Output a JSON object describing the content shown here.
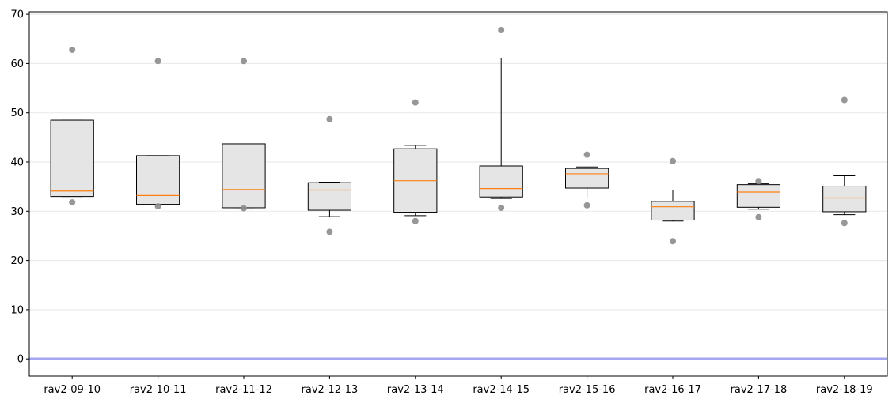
{
  "chart_data": {
    "type": "box",
    "title": "",
    "xlabel": "",
    "ylabel": "",
    "ylim": [
      -3.5,
      70.5
    ],
    "yticks": [
      0,
      10,
      20,
      30,
      40,
      50,
      60,
      70
    ],
    "grid": "horizontal",
    "reference_line": 0,
    "colors": {
      "box_fill": "#e5e5e5",
      "box_edge": "#000000",
      "median": "#ff7f0e",
      "flier": "#8c8c8c",
      "grid": "#ebebeb",
      "reference_line": "#a6a6f0"
    },
    "categories": [
      "rav2-09-10",
      "rav2-10-11",
      "rav2-11-12",
      "rav2-12-13",
      "rav2-13-14",
      "rav2-14-15",
      "rav2-15-16",
      "rav2-16-17",
      "rav2-17-18",
      "rav2-18-19"
    ],
    "boxes": [
      {
        "whisker_low": 33.0,
        "q1": 33.0,
        "median": 34.1,
        "q3": 48.5,
        "whisker_high": 48.5,
        "fliers": [
          31.8,
          62.8
        ]
      },
      {
        "whisker_low": 31.4,
        "q1": 31.4,
        "median": 33.2,
        "q3": 41.3,
        "whisker_high": 41.3,
        "fliers": [
          31.0,
          60.5
        ]
      },
      {
        "whisker_low": 30.7,
        "q1": 30.7,
        "median": 34.4,
        "q3": 43.7,
        "whisker_high": 43.7,
        "fliers": [
          30.6,
          60.5
        ]
      },
      {
        "whisker_low": 28.9,
        "q1": 30.2,
        "median": 34.3,
        "q3": 35.8,
        "whisker_high": 35.9,
        "fliers": [
          25.8,
          48.7
        ]
      },
      {
        "whisker_low": 29.1,
        "q1": 29.8,
        "median": 36.2,
        "q3": 42.7,
        "whisker_high": 43.4,
        "fliers": [
          28.0,
          52.1
        ]
      },
      {
        "whisker_low": 32.6,
        "q1": 32.9,
        "median": 34.6,
        "q3": 39.2,
        "whisker_high": 61.1,
        "fliers": [
          30.7,
          66.8
        ]
      },
      {
        "whisker_low": 32.7,
        "q1": 34.7,
        "median": 37.6,
        "q3": 38.7,
        "whisker_high": 39.0,
        "fliers": [
          31.2,
          41.5
        ]
      },
      {
        "whisker_low": 28.0,
        "q1": 28.2,
        "median": 30.9,
        "q3": 32.0,
        "whisker_high": 34.3,
        "fliers": [
          23.9,
          40.2
        ]
      },
      {
        "whisker_low": 30.4,
        "q1": 30.8,
        "median": 33.9,
        "q3": 35.4,
        "whisker_high": 35.6,
        "fliers": [
          28.8,
          36.1
        ]
      },
      {
        "whisker_low": 29.3,
        "q1": 29.9,
        "median": 32.7,
        "q3": 35.1,
        "whisker_high": 37.2,
        "fliers": [
          27.6,
          52.6
        ]
      }
    ]
  }
}
